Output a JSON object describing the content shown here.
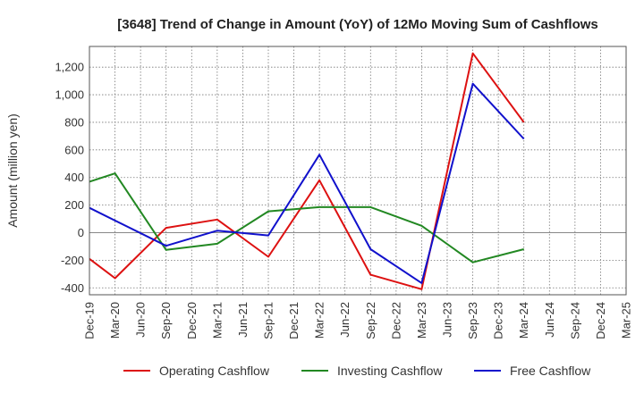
{
  "chart_data": {
    "type": "line",
    "title": "[3648]  Trend of Change in Amount (YoY) of 12Mo Moving Sum of Cashflows",
    "xlabel": "",
    "ylabel": "Amount (million yen)",
    "ylim": [
      -450,
      1350
    ],
    "yticks": [
      -400,
      -200,
      0,
      200,
      400,
      600,
      800,
      1000,
      1200
    ],
    "ytick_labels": [
      "-400",
      "-200",
      "0",
      "200",
      "400",
      "600",
      "800",
      "1,000",
      "1,200"
    ],
    "categories": [
      "Dec-19",
      "Mar-20",
      "Jun-20",
      "Sep-20",
      "Dec-20",
      "Mar-21",
      "Jun-21",
      "Sep-21",
      "Dec-21",
      "Mar-22",
      "Jun-22",
      "Sep-22",
      "Dec-22",
      "Mar-23",
      "Jun-23",
      "Sep-23",
      "Dec-23",
      "Mar-24",
      "Jun-24",
      "Sep-24",
      "Dec-24",
      "Mar-25"
    ],
    "series": [
      {
        "name": "Operating Cashflow",
        "color": "#dd1111",
        "values": [
          -190,
          -330,
          null,
          35,
          null,
          95,
          null,
          -175,
          null,
          380,
          null,
          -305,
          null,
          -410,
          null,
          1300,
          null,
          800,
          null,
          null,
          null,
          null
        ]
      },
      {
        "name": "Investing Cashflow",
        "color": "#228822",
        "values": [
          370,
          430,
          null,
          -125,
          null,
          -80,
          null,
          155,
          null,
          185,
          null,
          185,
          null,
          50,
          null,
          -215,
          null,
          -120,
          null,
          null,
          null,
          null
        ]
      },
      {
        "name": "Free Cashflow",
        "color": "#1111cc",
        "values": [
          180,
          null,
          null,
          -95,
          null,
          15,
          null,
          -20,
          null,
          565,
          null,
          -120,
          null,
          -365,
          null,
          1080,
          null,
          680,
          null,
          null,
          null,
          null
        ]
      }
    ],
    "grid": true,
    "legend": "bottom"
  }
}
